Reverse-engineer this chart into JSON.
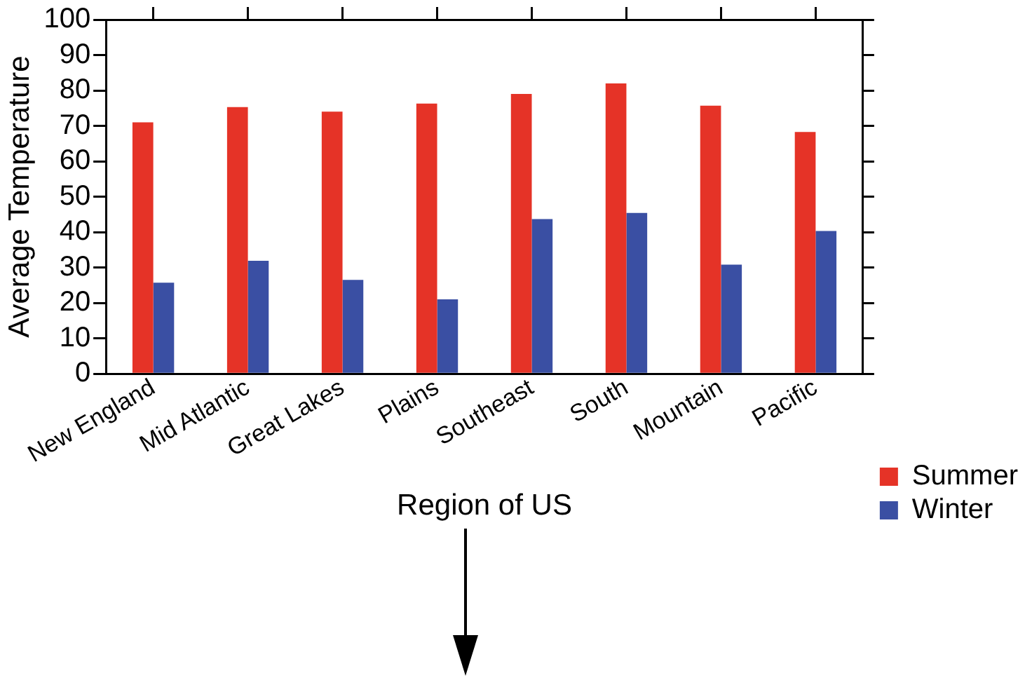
{
  "chart_data": {
    "type": "bar",
    "xlabel": "Region of US",
    "ylabel": "Average Temperature",
    "categories": [
      "New England",
      "Mid Atlantic",
      "Great Lakes",
      "Plains",
      "Southeast",
      "South",
      "Mountain",
      "Pacific"
    ],
    "series": [
      {
        "name": "Summer",
        "color": "#e53327",
        "values": [
          71,
          75.3,
          74,
          76.3,
          79,
          82,
          75.7,
          68.3
        ]
      },
      {
        "name": "Winter",
        "color": "#3a4fa3",
        "values": [
          25.7,
          31.9,
          26.5,
          21,
          43.7,
          45.4,
          30.8,
          40.3
        ]
      }
    ],
    "ylim": [
      0,
      100
    ],
    "yticks": [
      0,
      10,
      20,
      30,
      40,
      50,
      60,
      70,
      80,
      90,
      100
    ],
    "grid": false,
    "legend": "right"
  }
}
